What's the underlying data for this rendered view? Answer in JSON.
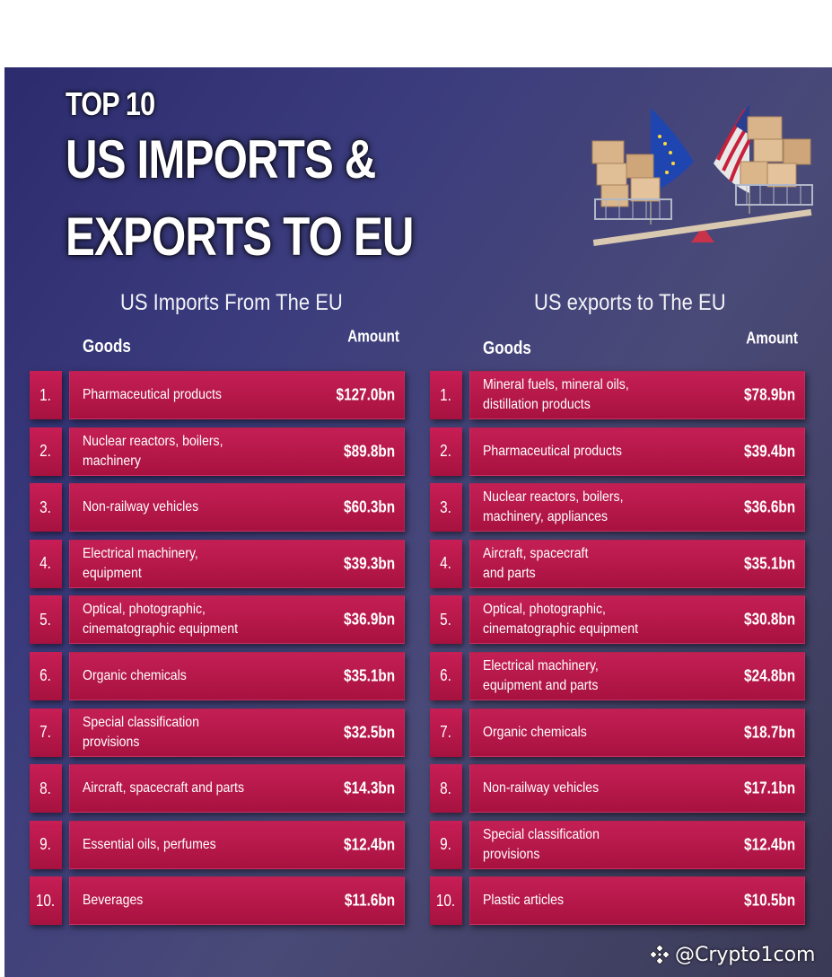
{
  "header": {
    "top_label": "TOP 10",
    "title": "US IMPORTS & EXPORTS TO EU"
  },
  "illustration": {
    "icon": "eu-us-trade-scale-illustration"
  },
  "imports": {
    "section_title": "US Imports From The EU",
    "goods_header": "Goods",
    "amount_header": "Amount",
    "rows": [
      {
        "rank": "1.",
        "good": "Pharmaceutical products",
        "amount": "$127.0bn"
      },
      {
        "rank": "2.",
        "good": "Nuclear reactors, boilers,\nmachinery",
        "amount": "$89.8bn"
      },
      {
        "rank": "3.",
        "good": "Non-railway vehicles",
        "amount": "$60.3bn"
      },
      {
        "rank": "4.",
        "good": "Electrical machinery,\nequipment",
        "amount": "$39.3bn"
      },
      {
        "rank": "5.",
        "good": "Optical, photographic,\ncinematographic equipment",
        "amount": "$36.9bn"
      },
      {
        "rank": "6.",
        "good": "Organic chemicals",
        "amount": "$35.1bn"
      },
      {
        "rank": "7.",
        "good": "Special classification\nprovisions",
        "amount": "$32.5bn"
      },
      {
        "rank": "8.",
        "good": "Aircraft, spacecraft and parts",
        "amount": "$14.3bn"
      },
      {
        "rank": "9.",
        "good": "Essential oils, perfumes",
        "amount": "$12.4bn"
      },
      {
        "rank": "10.",
        "good": "Beverages",
        "amount": "$11.6bn"
      }
    ]
  },
  "exports": {
    "section_title": "US exports to The EU",
    "goods_header": "Goods",
    "amount_header": "Amount",
    "rows": [
      {
        "rank": "1.",
        "good": "Mineral fuels, mineral oils,\ndistillation products",
        "amount": "$78.9bn"
      },
      {
        "rank": "2.",
        "good": "Pharmaceutical products",
        "amount": "$39.4bn"
      },
      {
        "rank": "3.",
        "good": "Nuclear reactors, boilers,\nmachinery, appliances",
        "amount": "$36.6bn"
      },
      {
        "rank": "4.",
        "good": "Aircraft, spacecraft\nand parts",
        "amount": "$35.1bn"
      },
      {
        "rank": "5.",
        "good": "Optical, photographic,\ncinematographic equipment",
        "amount": "$30.8bn"
      },
      {
        "rank": "6.",
        "good": "Electrical machinery,\nequipment and parts",
        "amount": "$24.8bn"
      },
      {
        "rank": "7.",
        "good": "Organic chemicals",
        "amount": "$18.7bn"
      },
      {
        "rank": "8.",
        "good": "Non-railway vehicles",
        "amount": "$17.1bn"
      },
      {
        "rank": "9.",
        "good": "Special classification\nprovisions",
        "amount": "$12.4bn"
      },
      {
        "rank": "10.",
        "good": "Plastic articles",
        "amount": "$10.5bn"
      }
    ]
  },
  "watermark": {
    "icon": "binance-diamond-icon",
    "text": "@Crypto1com"
  },
  "colors": {
    "background_start": "#2c2b6e",
    "background_end": "#3a3a55",
    "row_red": "#c41f55",
    "row_red_dark": "#a8123f",
    "text": "#ffffff"
  }
}
